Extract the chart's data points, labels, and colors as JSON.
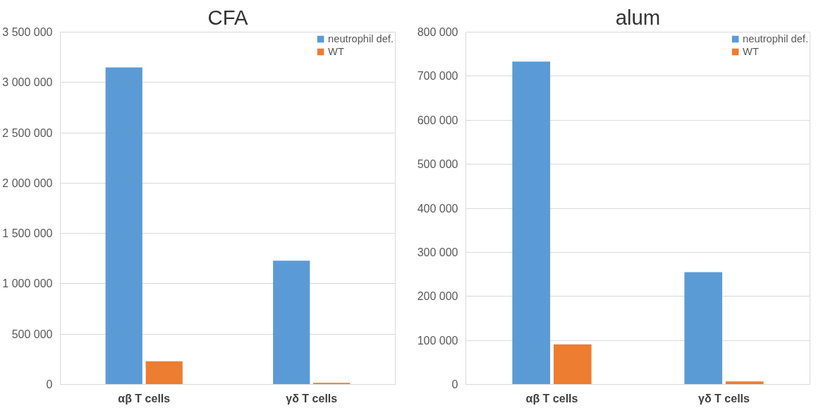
{
  "chart_data": [
    {
      "type": "bar",
      "title": "CFA",
      "categories": [
        "αβ T cells",
        "γδ T cells"
      ],
      "series": [
        {
          "name": "neutrophil def.",
          "color": "#5b9bd5",
          "values": [
            3150000,
            1230000
          ]
        },
        {
          "name": "WT",
          "color": "#ed7d31",
          "values": [
            230000,
            15000
          ]
        }
      ],
      "ylim": [
        0,
        3500000
      ],
      "yticks": [
        {
          "value": 0,
          "label": "0"
        },
        {
          "value": 500000,
          "label": "500 000"
        },
        {
          "value": 1000000,
          "label": "1 000 000"
        },
        {
          "value": 1500000,
          "label": "1 500 000"
        },
        {
          "value": 2000000,
          "label": "2 000 000"
        },
        {
          "value": 2500000,
          "label": "2 500 000"
        },
        {
          "value": 3000000,
          "label": "3 000 000"
        },
        {
          "value": 3500000,
          "label": "3 500 000"
        }
      ],
      "grid": "y",
      "legend": "top right"
    },
    {
      "type": "bar",
      "title": "alum",
      "categories": [
        "αβ T cells",
        "γδ T cells"
      ],
      "series": [
        {
          "name": "neutrophil def.",
          "color": "#5b9bd5",
          "values": [
            733000,
            255000
          ]
        },
        {
          "name": "WT",
          "color": "#ed7d31",
          "values": [
            91000,
            7000
          ]
        }
      ],
      "ylim": [
        0,
        800000
      ],
      "yticks": [
        {
          "value": 0,
          "label": "0"
        },
        {
          "value": 100000,
          "label": "100 000"
        },
        {
          "value": 200000,
          "label": "200 000"
        },
        {
          "value": 300000,
          "label": "300 000"
        },
        {
          "value": 400000,
          "label": "400 000"
        },
        {
          "value": 500000,
          "label": "500 000"
        },
        {
          "value": 600000,
          "label": "600 000"
        },
        {
          "value": 700000,
          "label": "700 000"
        },
        {
          "value": 800000,
          "label": "800 000"
        }
      ],
      "grid": "y",
      "legend": "top right"
    }
  ]
}
